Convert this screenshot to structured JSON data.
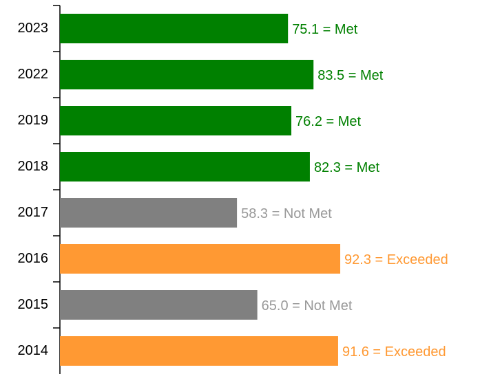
{
  "chart_data": {
    "type": "bar",
    "orientation": "horizontal",
    "categories": [
      "2023",
      "2022",
      "2019",
      "2018",
      "2017",
      "2016",
      "2015",
      "2014"
    ],
    "values": [
      75.1,
      83.5,
      76.2,
      82.3,
      58.3,
      92.3,
      65.0,
      91.6
    ],
    "value_labels": [
      "75.1 = Met",
      "83.5 = Met",
      "76.2 = Met",
      "82.3 = Met",
      "58.3 = Not Met",
      "92.3 = Exceeded",
      "65.0 = Not Met",
      "91.6 = Exceeded"
    ],
    "colors": [
      "#008000",
      "#008000",
      "#008000",
      "#008000",
      "#808080",
      "#ff9933",
      "#808080",
      "#ff9933"
    ]
  }
}
